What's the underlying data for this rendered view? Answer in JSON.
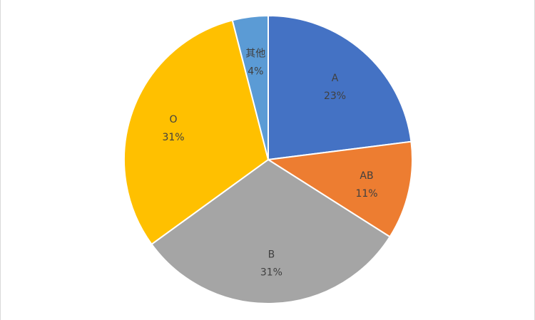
{
  "chart_data": {
    "type": "pie",
    "slices": [
      {
        "name": "A",
        "value": 23,
        "label": "23%",
        "color": "#4472C4"
      },
      {
        "name": "AB",
        "value": 11,
        "label": "11%",
        "color": "#ED7D31"
      },
      {
        "name": "B",
        "value": 31,
        "label": "31%",
        "color": "#A5A5A5"
      },
      {
        "name": "O",
        "value": 31,
        "label": "31%",
        "color": "#FFC000"
      },
      {
        "name": "其他",
        "value": 4,
        "label": "4%",
        "color": "#5B9BD5"
      }
    ],
    "start_angle": "12 o'clock",
    "direction": "clockwise",
    "legend": "none",
    "data_labels": "inside, category name and percentage"
  }
}
